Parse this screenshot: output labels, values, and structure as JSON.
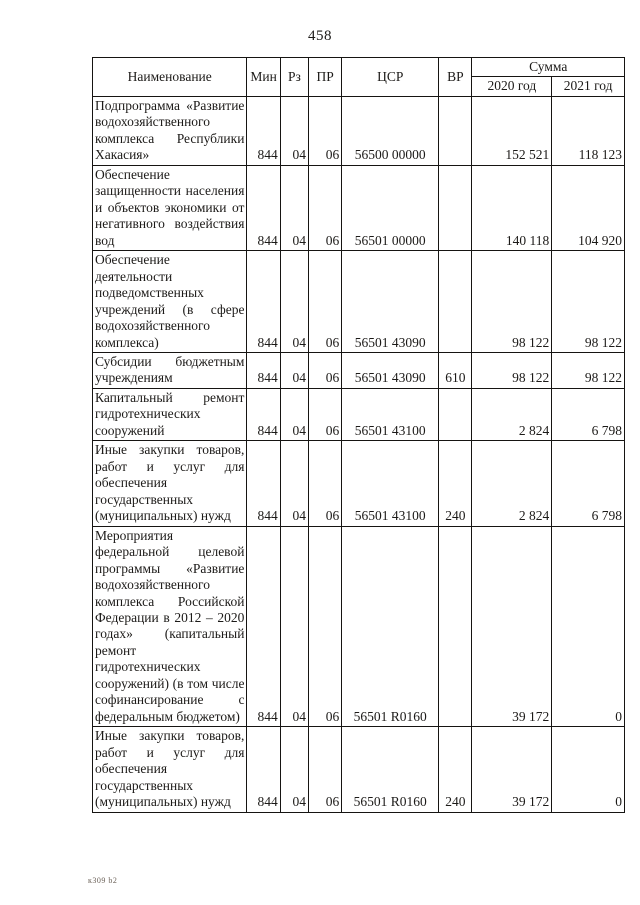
{
  "page": {
    "number": "458",
    "footer_mark": "к309 b2"
  },
  "table": {
    "headers": {
      "name": "Наименование",
      "min": "Мин",
      "rz": "Рз",
      "pr": "ПР",
      "csr": "ЦСР",
      "vr": "ВР",
      "sum": "Сумма",
      "y2020": "2020 год",
      "y2021": "2021 год"
    },
    "rows": [
      {
        "name": "Подпрограмма «Развитие водохозяйственного комплекса Республики Хакасия»",
        "min": "844",
        "rz": "04",
        "pr": "06",
        "csr": "56500 00000",
        "vr": "",
        "y2020": "152 521",
        "y2021": "118 123"
      },
      {
        "name": "Обеспечение защищенности населения и объектов экономики от негативного воздействия вод",
        "min": "844",
        "rz": "04",
        "pr": "06",
        "csr": "56501 00000",
        "vr": "",
        "y2020": "140 118",
        "y2021": "104 920"
      },
      {
        "name": "Обеспечение деятельности подведомственных учреждений (в сфере водохозяйственного комплекса)",
        "min": "844",
        "rz": "04",
        "pr": "06",
        "csr": "56501 43090",
        "vr": "",
        "y2020": "98 122",
        "y2021": "98 122"
      },
      {
        "name": "Субсидии бюджетным учреждениям",
        "min": "844",
        "rz": "04",
        "pr": "06",
        "csr": "56501 43090",
        "vr": "610",
        "y2020": "98 122",
        "y2021": "98 122"
      },
      {
        "name": "Капитальный ремонт гидротехнических сооружений",
        "min": "844",
        "rz": "04",
        "pr": "06",
        "csr": "56501 43100",
        "vr": "",
        "y2020": "2 824",
        "y2021": "6 798"
      },
      {
        "name": "Иные закупки товаров, работ и услуг для обеспечения государственных (муниципальных) нужд",
        "min": "844",
        "rz": "04",
        "pr": "06",
        "csr": "56501 43100",
        "vr": "240",
        "y2020": "2 824",
        "y2021": "6 798"
      },
      {
        "name": "Мероприятия федеральной целевой программы «Развитие водохозяйственного комплекса Российской Федерации в 2012 – 2020 годах» (капитальный ремонт гидротехнических сооружений) (в том числе софинансирование с федеральным бюджетом)",
        "min": "844",
        "rz": "04",
        "pr": "06",
        "csr": "56501 R0160",
        "vr": "",
        "y2020": "39 172",
        "y2021": "0"
      },
      {
        "name": "Иные закупки товаров, работ и услуг для обеспечения государственных (муниципальных) нужд",
        "min": "844",
        "rz": "04",
        "pr": "06",
        "csr": "56501 R0160",
        "vr": "240",
        "y2020": "39 172",
        "y2021": "0"
      }
    ]
  }
}
